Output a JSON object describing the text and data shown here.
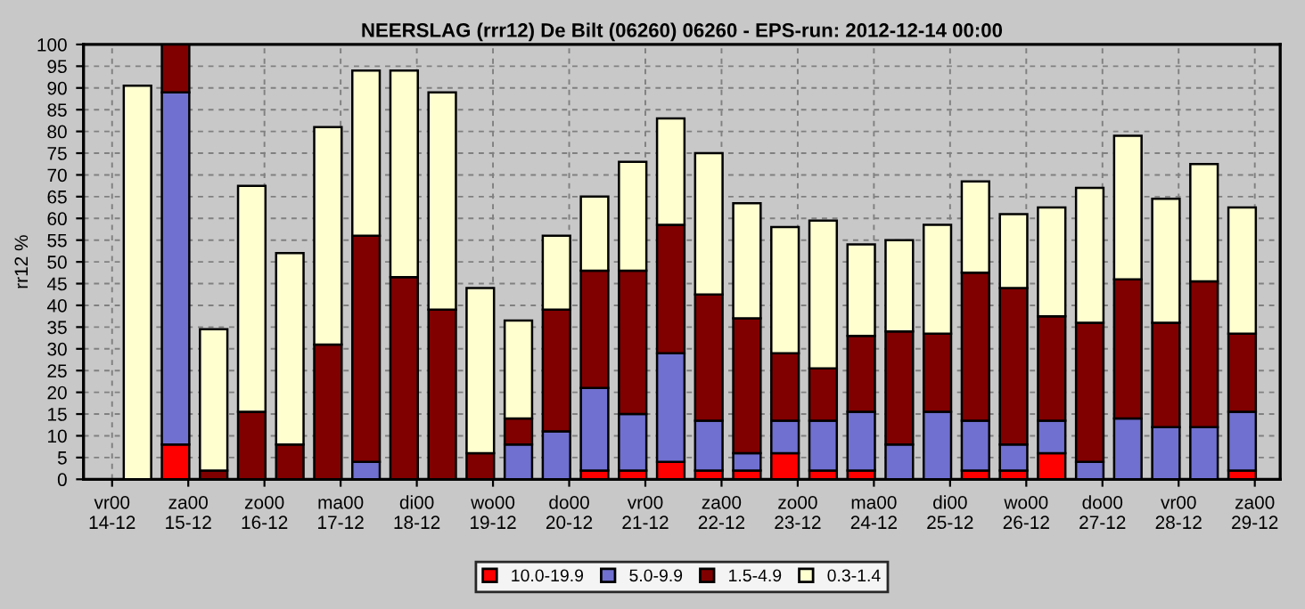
{
  "chart_data": {
    "type": "bar",
    "stacked": true,
    "title": "NEERSLAG (rrr12) De Bilt (06260) 06260 - EPS-run: 2012-12-14 00:00",
    "ylabel": "rr12 %",
    "x": [
      "2012-12-14T08:00",
      "2012-12-14T20:00",
      "2012-12-15T08:00",
      "2012-12-15T20:00",
      "2012-12-16T08:00",
      "2012-12-16T20:00",
      "2012-12-17T08:00",
      "2012-12-17T20:00",
      "2012-12-18T08:00",
      "2012-12-18T20:00",
      "2012-12-19T08:00",
      "2012-12-19T20:00",
      "2012-12-20T08:00",
      "2012-12-20T20:00",
      "2012-12-21T08:00",
      "2012-12-21T20:00",
      "2012-12-22T08:00",
      "2012-12-22T20:00",
      "2012-12-23T08:00",
      "2012-12-23T20:00",
      "2012-12-24T08:00",
      "2012-12-24T20:00",
      "2012-12-25T08:00",
      "2012-12-25T20:00",
      "2012-12-26T08:00",
      "2012-12-26T20:00",
      "2012-12-27T08:00",
      "2012-12-27T20:00",
      "2012-12-28T08:00",
      "2012-12-28T20:00"
    ],
    "series": [
      {
        "name": "10.0-19.9",
        "color": "#ff0000",
        "values": [
          0,
          8,
          0,
          0,
          0,
          0,
          0,
          0,
          0,
          0,
          0,
          0,
          2,
          2,
          4,
          2,
          2,
          6,
          2,
          2,
          0,
          0,
          2,
          2,
          6,
          0,
          0,
          0,
          0,
          2
        ]
      },
      {
        "name": "5.0-9.9",
        "color": "#7070d0",
        "values": [
          0,
          81,
          0,
          0,
          0,
          0,
          4,
          0,
          0,
          0,
          8,
          11,
          19,
          13,
          25,
          11.5,
          4,
          7.5,
          11.5,
          13.5,
          8,
          15.5,
          11.5,
          6,
          7.5,
          4,
          14,
          12,
          12,
          13.5
        ]
      },
      {
        "name": "1.5-4.9",
        "color": "#800000",
        "values": [
          0,
          11,
          2,
          15.5,
          8,
          31,
          52,
          46.5,
          39,
          6,
          6,
          28,
          27,
          33,
          29.5,
          29,
          31,
          15.5,
          12,
          17.5,
          26,
          18,
          34,
          36,
          24,
          32,
          32,
          24,
          33.5,
          18
        ]
      },
      {
        "name": "0.3-1.4",
        "color": "#ffffd0",
        "values": [
          90.5,
          0,
          32.5,
          52,
          44,
          50,
          38,
          47.5,
          50,
          38,
          22.5,
          17,
          17,
          25,
          24.5,
          32.5,
          26.5,
          29,
          34,
          21,
          21,
          25,
          21,
          17,
          25,
          31,
          33,
          28.5,
          27,
          29
        ]
      }
    ],
    "xlim": [
      "2012-12-13T15:00",
      "2012-12-29T08:00"
    ],
    "xticks": [
      {
        "value": "2012-12-14",
        "label": "vr00\n14-12"
      },
      {
        "value": "2012-12-15",
        "label": "za00\n15-12"
      },
      {
        "value": "2012-12-16",
        "label": "zo00\n16-12"
      },
      {
        "value": "2012-12-17",
        "label": "ma00\n17-12"
      },
      {
        "value": "2012-12-18",
        "label": "di00\n18-12"
      },
      {
        "value": "2012-12-19",
        "label": "wo00\n19-12"
      },
      {
        "value": "2012-12-20",
        "label": "do00\n20-12"
      },
      {
        "value": "2012-12-21",
        "label": "vr00\n21-12"
      },
      {
        "value": "2012-12-22",
        "label": "za00\n22-12"
      },
      {
        "value": "2012-12-23",
        "label": "zo00\n23-12"
      },
      {
        "value": "2012-12-24",
        "label": "ma00\n24-12"
      },
      {
        "value": "2012-12-25",
        "label": "di00\n25-12"
      },
      {
        "value": "2012-12-26",
        "label": "wo00\n26-12"
      },
      {
        "value": "2012-12-27",
        "label": "do00\n27-12"
      },
      {
        "value": "2012-12-28",
        "label": "vr00\n28-12"
      },
      {
        "value": "2012-12-29",
        "label": "za00\n29-12"
      }
    ],
    "ylim": [
      0,
      100
    ],
    "yticks": [
      0,
      5,
      10,
      15,
      20,
      25,
      30,
      35,
      40,
      45,
      50,
      55,
      60,
      65,
      70,
      75,
      80,
      85,
      90,
      95,
      100
    ],
    "grid": true,
    "legend": "bottom"
  }
}
